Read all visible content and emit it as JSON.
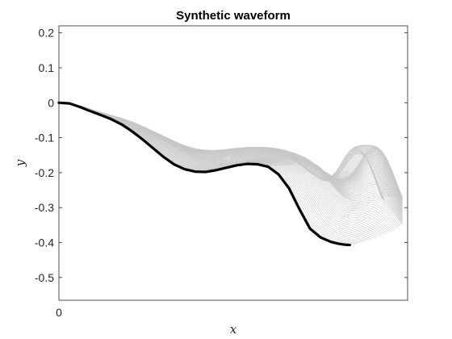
{
  "chart_data": {
    "type": "line",
    "title": "Synthetic waveform",
    "xlabel": "x",
    "ylabel": "y",
    "xlim": [
      0,
      1
    ],
    "ylim": [
      -0.565,
      0.22
    ],
    "xticks": [
      "0"
    ],
    "yticks": [
      "0.2",
      "0.1",
      "0",
      "-0.1",
      "-0.2",
      "-0.3",
      "-0.4",
      "-0.5"
    ],
    "ytick_values": [
      0.2,
      0.1,
      0,
      -0.1,
      -0.2,
      -0.3,
      -0.4,
      -0.5
    ],
    "grid": false,
    "legend": "none",
    "colors": {
      "main_series": "#000000",
      "background_series": "#c8c8c8",
      "axes": "#262626"
    },
    "series": [
      {
        "role": "highlighted",
        "x": [
          0.0,
          0.03,
          0.06,
          0.09,
          0.12,
          0.15,
          0.18,
          0.21,
          0.24,
          0.27,
          0.3,
          0.33,
          0.36,
          0.39,
          0.42,
          0.45,
          0.48,
          0.51,
          0.54,
          0.57,
          0.6,
          0.63,
          0.66,
          0.69,
          0.72,
          0.75,
          0.78,
          0.8,
          0.82,
          0.834
        ],
        "y": [
          0.0,
          -0.002,
          -0.012,
          -0.024,
          -0.035,
          -0.047,
          -0.062,
          -0.082,
          -0.105,
          -0.13,
          -0.155,
          -0.176,
          -0.19,
          -0.197,
          -0.198,
          -0.193,
          -0.186,
          -0.179,
          -0.175,
          -0.176,
          -0.183,
          -0.205,
          -0.245,
          -0.305,
          -0.36,
          -0.385,
          -0.398,
          -0.403,
          -0.406,
          -0.407
        ]
      }
    ]
  }
}
